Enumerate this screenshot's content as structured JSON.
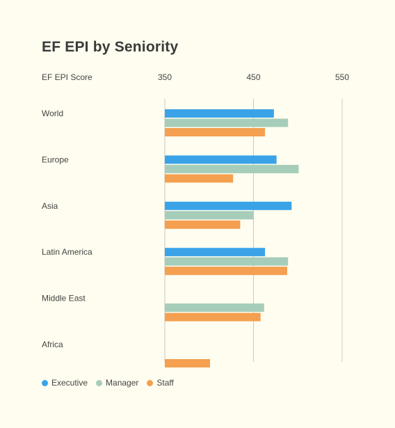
{
  "chart_data": {
    "type": "bar",
    "orientation": "horizontal",
    "title": "EF EPI by Seniority",
    "xlabel": "EF EPI Score",
    "xlim": [
      350,
      550
    ],
    "xticks": [
      350,
      450,
      550
    ],
    "grid": true,
    "legend_position": "bottom-left",
    "categories": [
      "World",
      "Europe",
      "Asia",
      "Latin America",
      "Middle East",
      "Africa"
    ],
    "series": [
      {
        "name": "Executive",
        "color": "#3aa3e8",
        "values": [
          473,
          476,
          493,
          463,
          null,
          null
        ]
      },
      {
        "name": "Manager",
        "color": "#a6cdb9",
        "values": [
          489,
          501,
          450,
          489,
          462,
          null
        ]
      },
      {
        "name": "Staff",
        "color": "#f4a050",
        "values": [
          463,
          427,
          435,
          488,
          458,
          401
        ]
      }
    ]
  }
}
